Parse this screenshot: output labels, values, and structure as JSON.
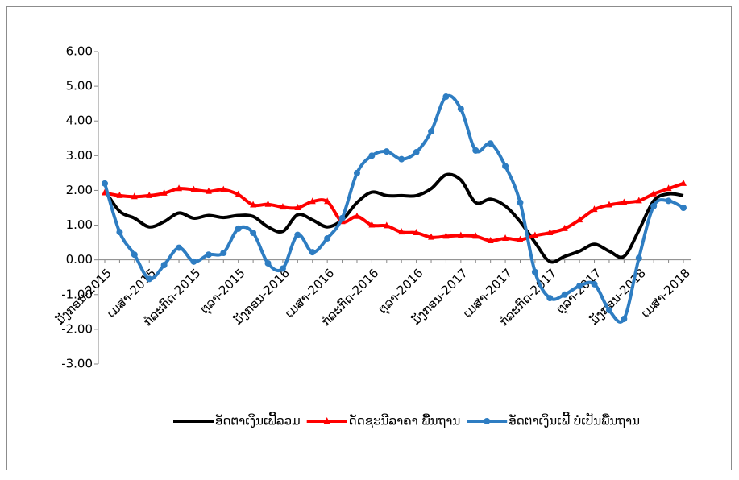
{
  "chart_data": {
    "type": "line",
    "categories": [
      "ມັງກອນ-2015",
      null,
      null,
      "ເມສາ-2015",
      null,
      null,
      "ກໍລະກົດ-2015",
      null,
      null,
      "ຕຸລາ-2015",
      null,
      null,
      "ມັງກອນ-2016",
      null,
      null,
      "ເມສາ-2016",
      null,
      null,
      "ກໍລະກົດ-2016",
      null,
      null,
      "ຕຸລາ-2016",
      null,
      null,
      "ມັງກອນ-2017",
      null,
      null,
      "ເມສາ-2017",
      null,
      null,
      "ກໍລະກົດ-2017",
      null,
      null,
      "ຕຸລາ-2017",
      null,
      null,
      "ມັງກອນ-2018",
      null,
      null,
      "ເມສາ-2018"
    ],
    "series": [
      {
        "name": "ອັດຕາເງິນເຟີ້ລວມ",
        "color": "#000000",
        "marker": "none",
        "values": [
          2.0,
          1.4,
          1.2,
          0.95,
          1.1,
          1.35,
          1.2,
          1.28,
          1.22,
          1.28,
          1.25,
          0.95,
          0.82,
          1.3,
          1.15,
          0.95,
          1.15,
          1.65,
          1.95,
          1.85,
          1.85,
          1.85,
          2.05,
          2.45,
          2.3,
          1.65,
          1.75,
          1.55,
          1.1,
          0.5,
          -0.05,
          0.1,
          0.25,
          0.45,
          0.25,
          0.1,
          0.85,
          1.7,
          1.9,
          1.85
        ]
      },
      {
        "name": "ດັດຊະນີລາຄາ ພື້ນຖານ",
        "color": "#ff0000",
        "marker": "triangle",
        "values": [
          1.93,
          1.85,
          1.82,
          1.85,
          1.92,
          2.05,
          2.02,
          1.97,
          2.02,
          1.88,
          1.58,
          1.6,
          1.52,
          1.5,
          1.68,
          1.68,
          1.1,
          1.25,
          1.0,
          0.98,
          0.8,
          0.78,
          0.65,
          0.68,
          0.7,
          0.68,
          0.55,
          0.62,
          0.58,
          0.7,
          0.78,
          0.9,
          1.15,
          1.45,
          1.58,
          1.65,
          1.7,
          1.9,
          2.05,
          2.2
        ]
      },
      {
        "name": "ອັດຕາເງິນເຟີ້ ບໍ່ເປັນພື້ນຖານ",
        "color": "#2e7dc2",
        "marker": "circle",
        "values": [
          2.2,
          0.8,
          0.15,
          -0.55,
          -0.15,
          0.35,
          -0.05,
          0.15,
          0.2,
          0.9,
          0.78,
          -0.1,
          -0.25,
          0.72,
          0.22,
          0.62,
          1.2,
          2.5,
          3.0,
          3.12,
          2.9,
          3.1,
          3.7,
          4.7,
          4.35,
          3.15,
          3.35,
          2.7,
          1.65,
          -0.35,
          -1.1,
          -1.0,
          -0.75,
          -0.7,
          -1.45,
          -1.7,
          0.05,
          1.55,
          1.7,
          1.5
        ]
      }
    ],
    "ylim": [
      -3,
      6
    ],
    "yticks": [
      {
        "value": -3,
        "label": "-3.00"
      },
      {
        "value": -2,
        "label": "-2.00"
      },
      {
        "value": -1,
        "label": "-1.00"
      },
      {
        "value": 0,
        "label": "0.00"
      },
      {
        "value": 1,
        "label": "1.00"
      },
      {
        "value": 2,
        "label": "2.00"
      },
      {
        "value": 3,
        "label": "3.00"
      },
      {
        "value": 4,
        "label": "4.00"
      },
      {
        "value": 5,
        "label": "5.00"
      },
      {
        "value": 6,
        "label": "6.00"
      }
    ],
    "grid": false,
    "legend": "bottom"
  }
}
